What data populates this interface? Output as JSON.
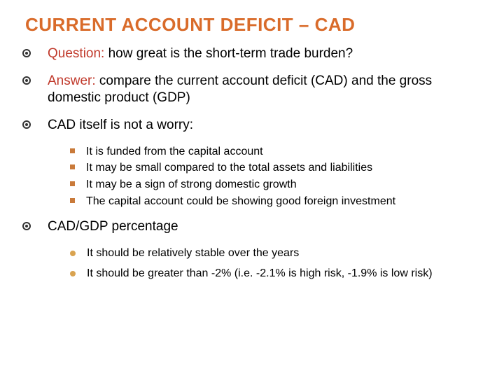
{
  "colors": {
    "title": "#d96b2a",
    "prefix": "#c0392b",
    "square_bullet": "#c97a3a",
    "disc_bullet": "#d9a350",
    "text": "#000000",
    "background": "#ffffff"
  },
  "title": "CURRENT ACCOUNT DEFICIT – CAD",
  "items": [
    {
      "prefix": "Question:",
      "text": " how great is the short-term trade burden?"
    },
    {
      "prefix": "Answer:",
      "text": " compare the current account deficit (CAD) and the gross domestic product (GDP)"
    },
    {
      "text": "CAD itself is not a worry:",
      "sub_style": "square",
      "subs": [
        "It is funded from the capital account",
        "It may be small compared to the total assets and liabilities",
        "It may be a sign of strong domestic growth",
        "The capital account could be showing good foreign investment"
      ]
    },
    {
      "text": "CAD/GDP percentage",
      "sub_style": "disc",
      "spaced": true,
      "subs": [
        "It should be relatively stable over the years",
        "It should be greater than -2% (i.e. -2.1% is high risk, -1.9% is low risk)"
      ]
    }
  ]
}
